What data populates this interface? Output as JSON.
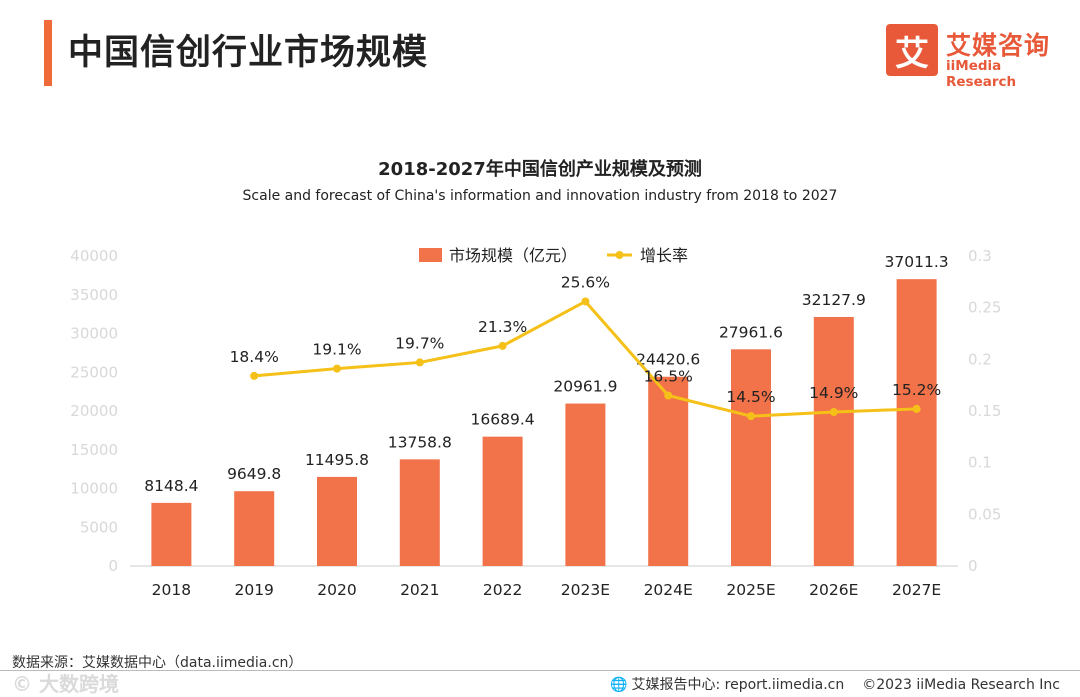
{
  "page": {
    "title": "中国信创行业市场规模"
  },
  "logo": {
    "mark": "艾",
    "name_cn": "艾媒咨询",
    "name_en": "iiMedia Research"
  },
  "chart_data": {
    "type": "bar",
    "title": "2018-2027年中国信创产业规模及预测",
    "subtitle": "Scale and forecast of China's information and innovation industry from 2018 to 2027",
    "categories": [
      "2018",
      "2019",
      "2020",
      "2021",
      "2022",
      "2023E",
      "2024E",
      "2025E",
      "2026E",
      "2027E"
    ],
    "series": [
      {
        "name": "市场规模（亿元）",
        "type": "bar",
        "axis": "left",
        "color": "#f2724a",
        "values": [
          8148.4,
          9649.8,
          11495.8,
          13758.8,
          16689.4,
          20961.9,
          24420.6,
          27961.6,
          32127.9,
          37011.3
        ],
        "labels": [
          "8148.4",
          "9649.8",
          "11495.8",
          "13758.8",
          "16689.4",
          "20961.9",
          "24420.6",
          "27961.6",
          "32127.9",
          "37011.3"
        ]
      },
      {
        "name": "增长率",
        "type": "line",
        "axis": "right",
        "color": "#f5c018",
        "values": [
          null,
          0.184,
          0.191,
          0.197,
          0.213,
          0.256,
          0.165,
          0.145,
          0.149,
          0.152
        ],
        "labels": [
          "",
          "18.4%",
          "19.1%",
          "19.7%",
          "21.3%",
          "25.6%",
          "16.5%",
          "14.5%",
          "14.9%",
          "15.2%"
        ]
      }
    ],
    "y_left": {
      "range": [
        0,
        40000
      ],
      "ticks": [
        0,
        5000,
        10000,
        15000,
        20000,
        25000,
        30000,
        35000,
        40000
      ],
      "tick_labels": [
        "0",
        "5000",
        "10000",
        "15000",
        "20000",
        "25000",
        "30000",
        "35000",
        "40000"
      ]
    },
    "y_right": {
      "range": [
        0,
        0.3
      ],
      "ticks": [
        0,
        0.05,
        0.1,
        0.15,
        0.2,
        0.25,
        0.3
      ],
      "tick_labels": [
        "0",
        "0.05",
        "0.1",
        "0.15",
        "0.2",
        "0.25",
        "0.3"
      ]
    },
    "grid": false,
    "legend_position": "top-center"
  },
  "footer": {
    "source": "数据来源：艾媒数据中心（data.iimedia.cn）",
    "report_center": "艾媒报告中心: report.iimedia.cn",
    "copyright": "©2023  iiMedia Research  Inc"
  },
  "watermark": "© 大数跨境"
}
